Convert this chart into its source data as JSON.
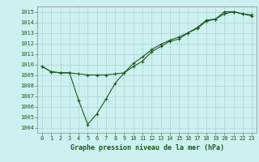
{
  "title": "Graphe pression niveau de la mer (hPa)",
  "background_color": "#cdf0f0",
  "grid_color": "#b0d8d8",
  "line_color": "#1a5c1a",
  "xlim": [
    -0.5,
    23.5
  ],
  "ylim": [
    1003.5,
    1015.5
  ],
  "xticks": [
    0,
    1,
    2,
    3,
    4,
    5,
    6,
    7,
    8,
    9,
    10,
    11,
    12,
    13,
    14,
    15,
    16,
    17,
    18,
    19,
    20,
    21,
    22,
    23
  ],
  "yticks": [
    1004,
    1005,
    1006,
    1007,
    1008,
    1009,
    1010,
    1011,
    1012,
    1013,
    1014,
    1015
  ],
  "series1_x": [
    0,
    1,
    2,
    3,
    4,
    5,
    6,
    7,
    8,
    9,
    10,
    11,
    12,
    13,
    14,
    15,
    16,
    17,
    18,
    19,
    20,
    21,
    22,
    23
  ],
  "series1_y": [
    1009.8,
    1009.3,
    1009.2,
    1009.2,
    1006.6,
    1004.3,
    1005.3,
    1006.7,
    1008.2,
    1009.2,
    1009.8,
    1010.3,
    1011.2,
    1011.7,
    1012.2,
    1012.4,
    1013.0,
    1013.5,
    1014.2,
    1014.3,
    1015.0,
    1015.0,
    1014.8,
    1014.7
  ],
  "series2_x": [
    0,
    1,
    2,
    3,
    4,
    5,
    6,
    7,
    8,
    9,
    10,
    11,
    12,
    13,
    14,
    15,
    16,
    17,
    18,
    19,
    20,
    21,
    22,
    23
  ],
  "series2_y": [
    1009.8,
    1009.3,
    1009.2,
    1009.2,
    1009.1,
    1009.0,
    1009.0,
    1009.0,
    1009.1,
    1009.2,
    1010.1,
    1010.7,
    1011.4,
    1011.9,
    1012.3,
    1012.6,
    1013.0,
    1013.4,
    1014.1,
    1014.3,
    1014.8,
    1015.0,
    1014.8,
    1014.6
  ],
  "xlabel_fontsize": 6,
  "tick_fontsize": 5
}
